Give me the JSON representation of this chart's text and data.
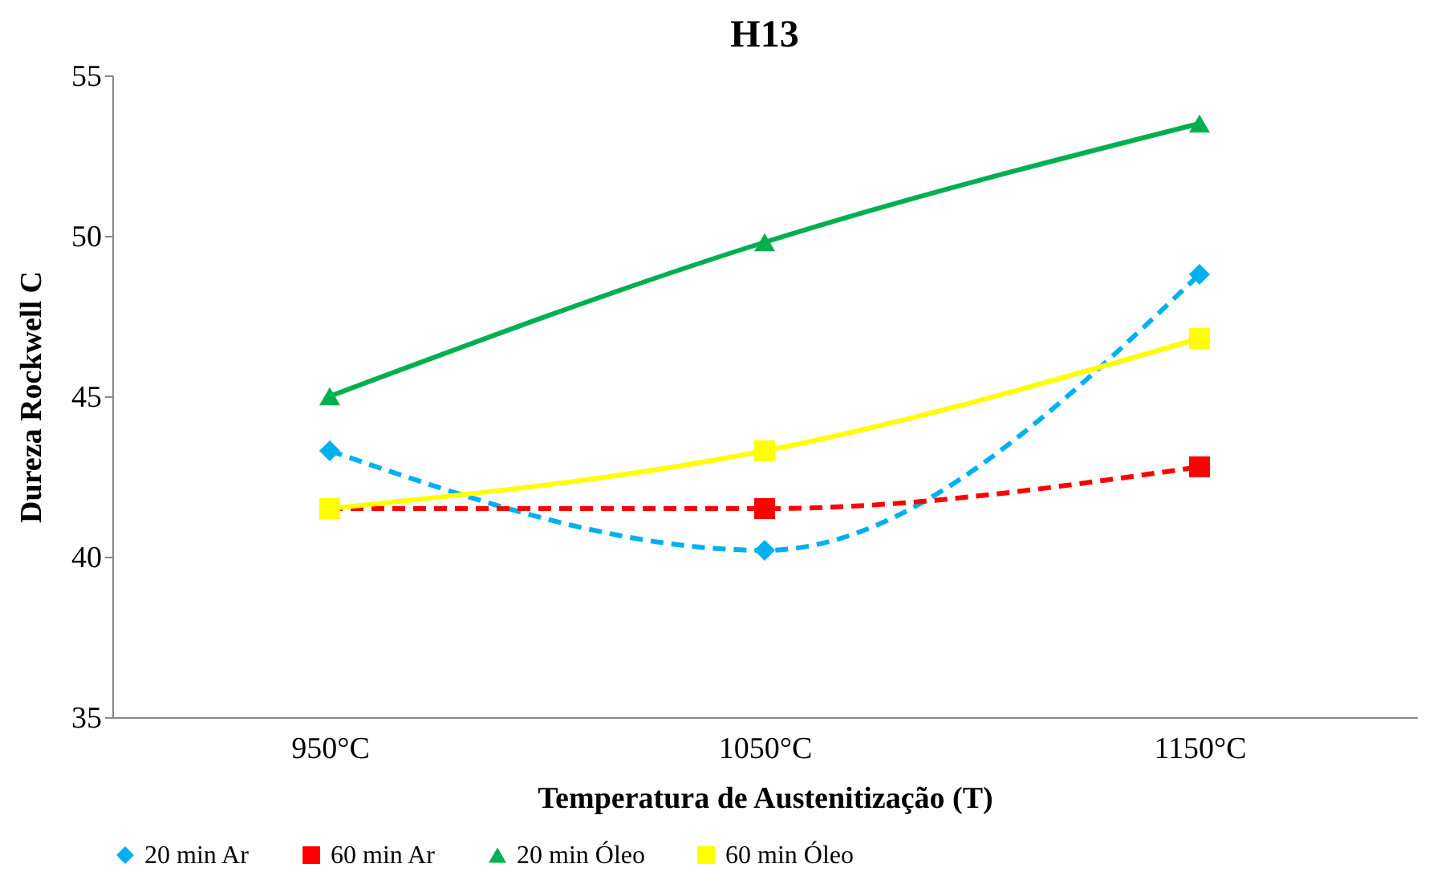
{
  "chart_data": {
    "type": "line",
    "title": "H13",
    "xlabel": "Temperatura de Austenitização (T)",
    "ylabel": "Dureza Rockwell C",
    "categories": [
      "950°C",
      "1050°C",
      "1150°C"
    ],
    "series": [
      {
        "name": "20 min Ar",
        "color": "#00b0f0",
        "values": [
          43.3,
          40.2,
          48.8
        ],
        "marker": "diamond",
        "line_style": "dashed"
      },
      {
        "name": "60 min Ar",
        "color": "#ff0000",
        "values": [
          41.5,
          41.5,
          42.8
        ],
        "marker": "square",
        "line_style": "dashed"
      },
      {
        "name": "20 min Óleo",
        "color": "#00b050",
        "values": [
          45,
          49.8,
          53.5
        ],
        "marker": "triangle",
        "line_style": "solid"
      },
      {
        "name": "60 min Óleo",
        "color": "#ffff00",
        "values": [
          41.5,
          43.3,
          46.8
        ],
        "marker": "square",
        "line_style": "solid"
      }
    ],
    "ylim": [
      35,
      55
    ],
    "yticks": [
      35,
      40,
      45,
      50,
      55
    ],
    "grid": false,
    "legend": "bottom"
  }
}
